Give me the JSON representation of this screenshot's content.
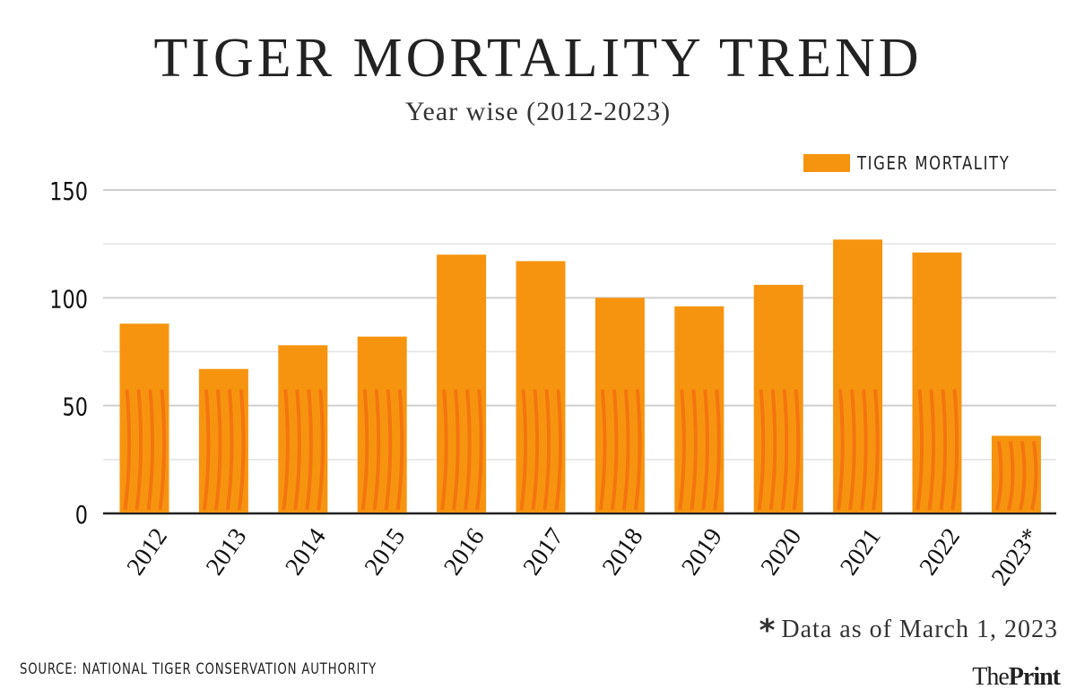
{
  "header": {
    "title": "TIGER MORTALITY TREND",
    "subtitle": "Year wise (2012-2023)"
  },
  "legend": {
    "label": "TIGER MORTALITY",
    "color": "#f7940f"
  },
  "footnote": {
    "star": "*",
    "text": "Data as of March 1, 2023"
  },
  "source": "SOURCE: NATIONAL TIGER CONSERVATION AUTHORITY",
  "brand": {
    "part1": "The",
    "part2": "Print"
  },
  "chart_data": {
    "type": "bar",
    "title": "TIGER MORTALITY TREND",
    "subtitle": "Year wise (2012-2023)",
    "categories": [
      "2012",
      "2013",
      "2014",
      "2015",
      "2016",
      "2017",
      "2018",
      "2019",
      "2020",
      "2021",
      "2022",
      "2023*"
    ],
    "series": [
      {
        "name": "TIGER MORTALITY",
        "values": [
          88,
          67,
          78,
          82,
          120,
          117,
          100,
          96,
          106,
          127,
          121,
          36
        ],
        "color": "#f7940f"
      }
    ],
    "xlabel": "",
    "ylabel": "",
    "ylim": [
      0,
      150
    ],
    "yticks": [
      0,
      50,
      100,
      150
    ],
    "grid": true,
    "legend_position": "top-right",
    "annotations": [
      "* Data as of March 1, 2023"
    ]
  }
}
